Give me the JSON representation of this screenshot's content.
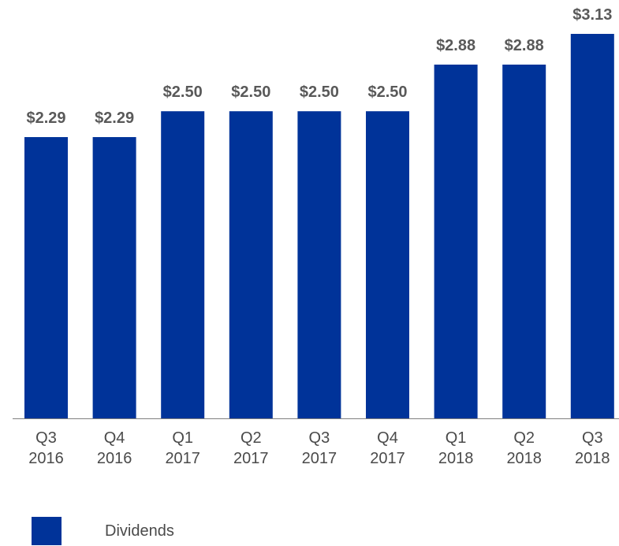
{
  "chart_data": {
    "type": "bar",
    "categories": [
      [
        "Q3",
        "2016"
      ],
      [
        "Q4",
        "2016"
      ],
      [
        "Q1",
        "2017"
      ],
      [
        "Q2",
        "2017"
      ],
      [
        "Q3",
        "2017"
      ],
      [
        "Q4",
        "2017"
      ],
      [
        "Q1",
        "2018"
      ],
      [
        "Q2",
        "2018"
      ],
      [
        "Q3",
        "2018"
      ]
    ],
    "series": [
      {
        "name": "Dividends",
        "values": [
          2.29,
          2.29,
          2.5,
          2.5,
          2.5,
          2.5,
          2.88,
          2.88,
          3.13
        ],
        "labels": [
          "$2.29",
          "$2.29",
          "$2.50",
          "$2.50",
          "$2.50",
          "$2.50",
          "$2.88",
          "$2.88",
          "$3.13"
        ]
      }
    ],
    "ylim": [
      0,
      3.13
    ],
    "grid": false,
    "legend_position": "bottom-left",
    "colors": {
      "bar": "#003399",
      "value_label": "#595959",
      "tick_label": "#4a4a4a",
      "axis": "#7f7f7f"
    }
  }
}
